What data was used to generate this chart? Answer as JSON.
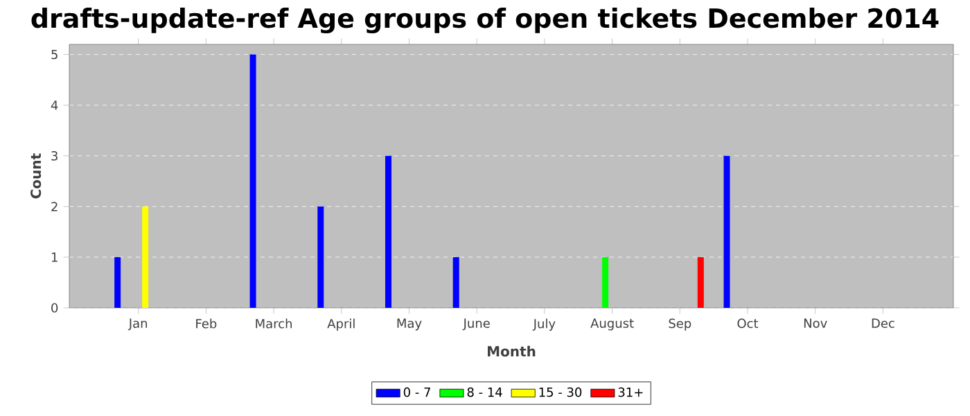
{
  "chart_data": {
    "type": "bar",
    "title": "drafts-update-ref Age groups of open tickets December 2014",
    "xlabel": "Month",
    "ylabel": "Count",
    "categories": [
      "Jan",
      "Feb",
      "March",
      "April",
      "May",
      "June",
      "July",
      "August",
      "Sep",
      "Oct",
      "Nov",
      "Dec"
    ],
    "series": [
      {
        "name": "0 - 7",
        "color": "#0000ff",
        "values": [
          1,
          null,
          5,
          2,
          3,
          1,
          null,
          null,
          null,
          3,
          null,
          null
        ]
      },
      {
        "name": "8 - 14",
        "color": "#00ff00",
        "values": [
          null,
          null,
          null,
          null,
          null,
          null,
          null,
          1,
          null,
          null,
          null,
          null
        ]
      },
      {
        "name": "15 - 30",
        "color": "#ffff00",
        "values": [
          2,
          null,
          null,
          null,
          null,
          null,
          null,
          null,
          null,
          null,
          null,
          null
        ]
      },
      {
        "name": "31+",
        "color": "#ff0000",
        "values": [
          null,
          null,
          null,
          null,
          null,
          null,
          null,
          null,
          1,
          null,
          null,
          null
        ]
      }
    ],
    "ylim": [
      0,
      5.2
    ],
    "yticks": [
      0,
      1,
      2,
      3,
      4,
      5
    ],
    "grid": "y",
    "legend": "bottom"
  }
}
